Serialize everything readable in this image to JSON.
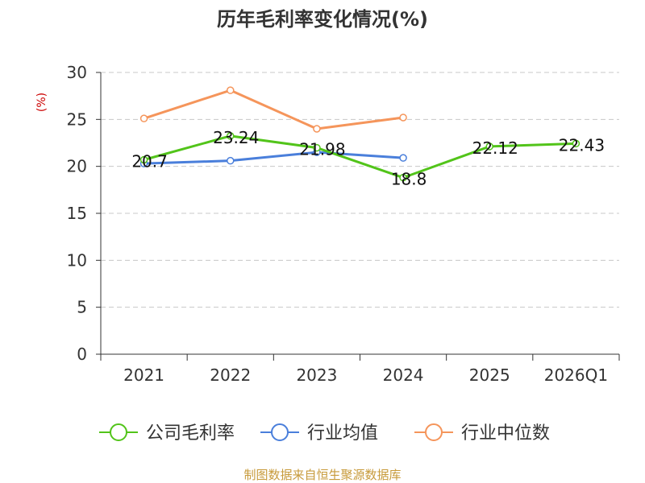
{
  "chart_data": {
    "type": "line",
    "title": "历年毛利率变化情况(%)",
    "ylabel": "(%)",
    "xlabel": "",
    "categories": [
      "2021",
      "2022",
      "2023",
      "2024",
      "2025",
      "2026Q1"
    ],
    "ylim": [
      0,
      30
    ],
    "yticks": [
      0,
      5,
      10,
      15,
      20,
      25,
      30
    ],
    "grid": true,
    "legend_position": "bottom",
    "series": [
      {
        "name": "公司毛利率",
        "color": "#52c41a",
        "values": [
          20.7,
          23.24,
          21.98,
          18.8,
          22.12,
          22.43
        ],
        "show_labels": true,
        "labels": [
          "20.7",
          "23.24",
          "21.98",
          "18.8",
          "22.12",
          "22.43"
        ]
      },
      {
        "name": "行业均值",
        "color": "#4a7fdb",
        "values": [
          20.3,
          20.6,
          21.5,
          20.9,
          null,
          null
        ],
        "show_labels": false
      },
      {
        "name": "行业中位数",
        "color": "#f5955b",
        "values": [
          25.1,
          28.1,
          24.0,
          25.2,
          null,
          null
        ],
        "show_labels": false
      }
    ]
  },
  "source": "制图数据来自恒生聚源数据库"
}
